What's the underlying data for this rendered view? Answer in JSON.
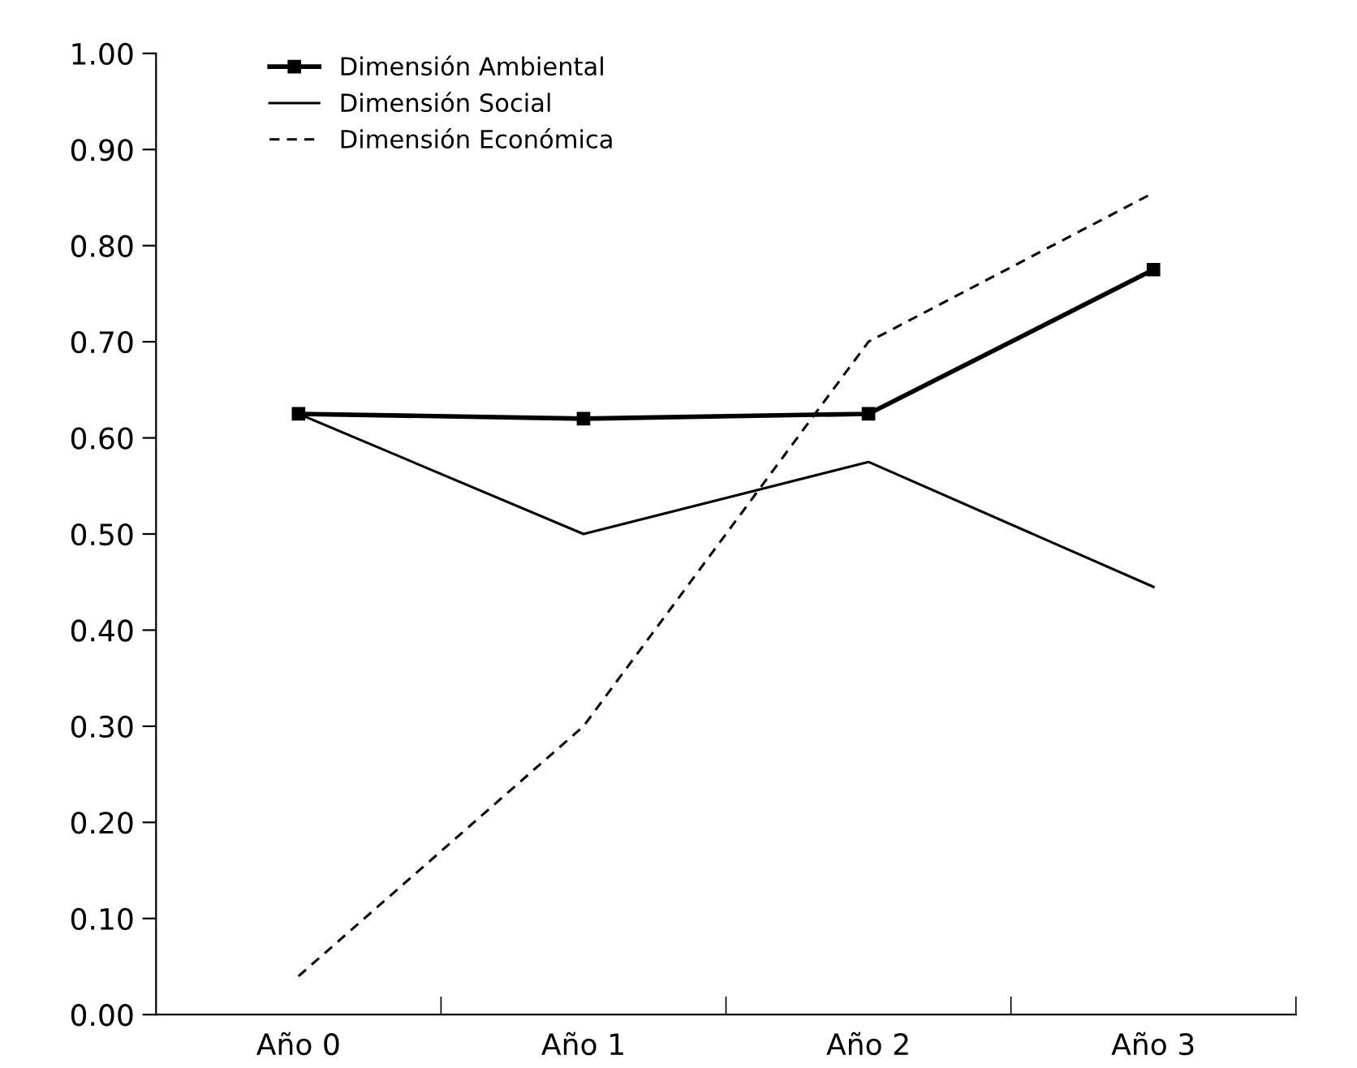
{
  "chart_data": {
    "type": "line",
    "categories": [
      "Año 0",
      "Año 1",
      "Año 2",
      "Año 3"
    ],
    "series": [
      {
        "name": "Dimensión Ambiental",
        "color": "#000000",
        "values": [
          0.625,
          0.62,
          0.625,
          0.775
        ],
        "marker": "square",
        "line_style": "solid"
      },
      {
        "name": "Dimensión Social",
        "color": "#000000",
        "values": [
          0.625,
          0.5,
          0.575,
          0.445
        ],
        "marker": "none",
        "line_style": "solid"
      },
      {
        "name": "Dimensión Económica",
        "color": "#000000",
        "values": [
          0.04,
          0.3,
          0.7,
          0.855
        ],
        "marker": "none",
        "line_style": "dashed"
      }
    ],
    "ylim": [
      0,
      1
    ],
    "yticks": [
      {
        "value": 0,
        "label": "0.00"
      },
      {
        "value": 0.1,
        "label": "0.10"
      },
      {
        "value": 0.2,
        "label": "0.20"
      },
      {
        "value": 0.3,
        "label": "0.30"
      },
      {
        "value": 0.4,
        "label": "0.40"
      },
      {
        "value": 0.5,
        "label": "0.50"
      },
      {
        "value": 0.6,
        "label": "0.60"
      },
      {
        "value": 0.7,
        "label": "0.70"
      },
      {
        "value": 0.8,
        "label": "0.80"
      },
      {
        "value": 0.9,
        "label": "0.90"
      },
      {
        "value": 1,
        "label": "1.00"
      }
    ],
    "grid": false,
    "legend": "top left"
  }
}
